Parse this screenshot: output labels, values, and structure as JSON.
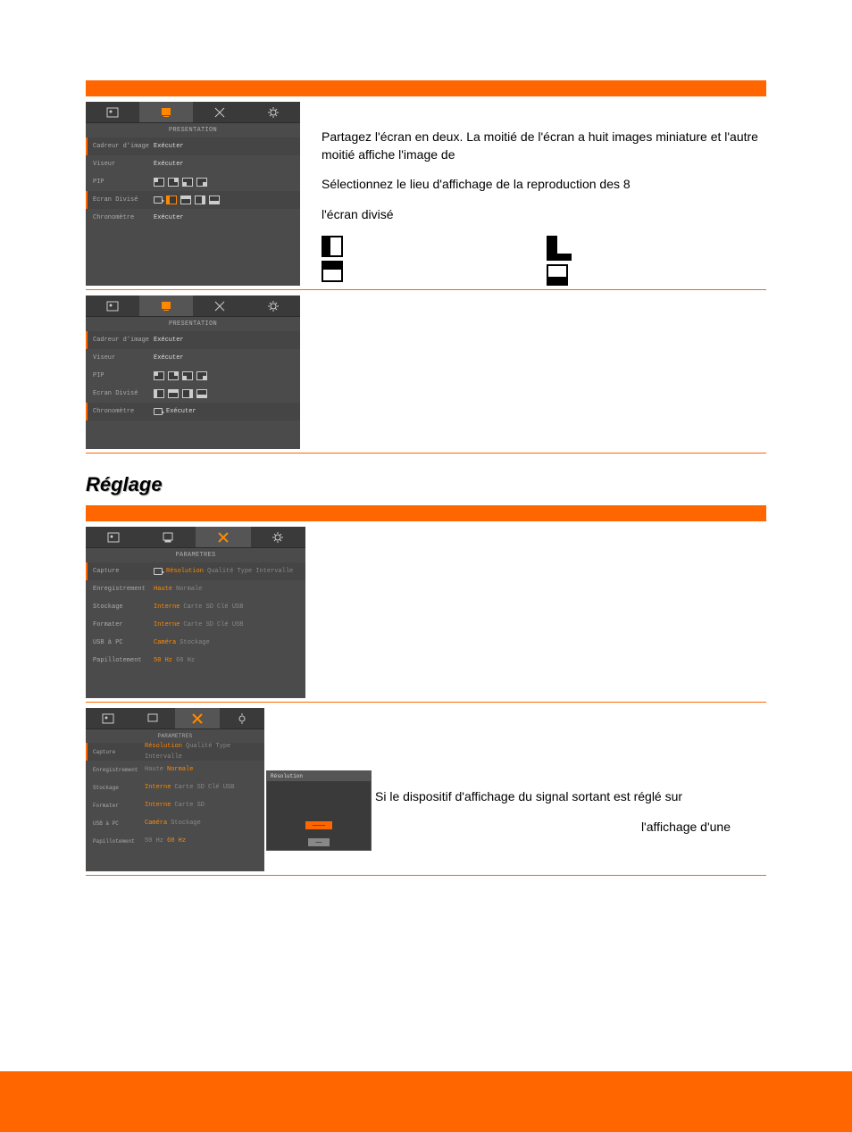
{
  "colors": {
    "orange": "#ff6600",
    "panel_bg": "#3a3a3a",
    "panel_outer": "#4b4b4b",
    "text_muted": "#b0b0b0",
    "highlight": "#ff8800"
  },
  "panelA": {
    "title": "PRESENTATION",
    "rows": [
      {
        "label": "Cadreur d'image",
        "value": "Exécuter",
        "selected": true
      },
      {
        "label": "Viseur",
        "value": "Exécuter"
      },
      {
        "label": "PIP",
        "icons": [
          "tl",
          "tr",
          "bl",
          "br"
        ]
      },
      {
        "label": "Ecran Divisé",
        "loop": true,
        "icons": [
          "l",
          "t",
          "r",
          "b"
        ],
        "selIcon": 0,
        "selected": true
      },
      {
        "label": "Chronomètre",
        "value": "Exécuter"
      }
    ]
  },
  "descA": {
    "p1": "Partagez l'écran en deux. La moitié de l'écran a huit images miniature et l'autre moitié affiche l'image de",
    "p2": "Sélectionnez le lieu d'affichage de la reproduction des 8",
    "p3": "l'écran divisé"
  },
  "panelB": {
    "title": "PRESENTATION",
    "rows": [
      {
        "label": "Cadreur d'image",
        "value": "Exécuter",
        "selected": true
      },
      {
        "label": "Viseur",
        "value": "Exécuter"
      },
      {
        "label": "PIP",
        "icons": [
          "tl",
          "tr",
          "bl",
          "br"
        ]
      },
      {
        "label": "Ecran Divisé",
        "icons": [
          "l",
          "t",
          "r",
          "b"
        ]
      },
      {
        "label": "Chronomètre",
        "loop": true,
        "value": "Exécuter",
        "selected": true
      }
    ]
  },
  "heading": "Réglage",
  "panelC": {
    "title": "PARAMETRES",
    "rows": [
      {
        "label": "Capture",
        "loop": true,
        "vals": [
          "Résolution",
          "Qualité",
          "Type",
          "Intervalle"
        ],
        "hl": 0,
        "selected": true
      },
      {
        "label": "Enregistrement",
        "vals": [
          "Haute",
          "Normale"
        ],
        "hl": 0
      },
      {
        "label": "Stockage",
        "vals": [
          "Interne",
          "Carte SD",
          "Clé USB"
        ],
        "hl": 0
      },
      {
        "label": "Formater",
        "vals": [
          "Interne",
          "Carte SD",
          "Clé USB"
        ],
        "hl": 0
      },
      {
        "label": "USB à PC",
        "vals": [
          "Caméra",
          "Stockage"
        ],
        "hl": 0
      },
      {
        "label": "Papillotement",
        "vals": [
          "50 Hz",
          "60 Hz"
        ],
        "hl": 0
      }
    ]
  },
  "panelD": {
    "title": "PARAMETRES",
    "rows": [
      {
        "label": "Capture",
        "vals": [
          "Résolution",
          "Qualité",
          "Type",
          "Intervalle"
        ],
        "hl": 0,
        "selected": true
      },
      {
        "label": "Enregistrement",
        "vals": [
          "Haute",
          "Normale"
        ],
        "hl": 1
      },
      {
        "label": "Stockage",
        "vals": [
          "Interne",
          "Carte SD",
          "Clé USB"
        ],
        "hl": 0
      },
      {
        "label": "Formater",
        "vals": [
          "Interne",
          "Carte SD"
        ],
        "hl": 0,
        "popup": true
      },
      {
        "label": "USB à PC",
        "vals": [
          "Caméra",
          "Stockage"
        ],
        "hl": 0
      },
      {
        "label": "Papillotement",
        "vals": [
          "50 Hz",
          "60 Hz"
        ],
        "hl": 1
      }
    ],
    "popup": {
      "title": "Résolution",
      "button": "————",
      "foot": "——"
    }
  },
  "descD": {
    "p1": "Si le dispositif d'affichage du signal sortant est réglé sur",
    "p2": "l'affichage d'une"
  }
}
